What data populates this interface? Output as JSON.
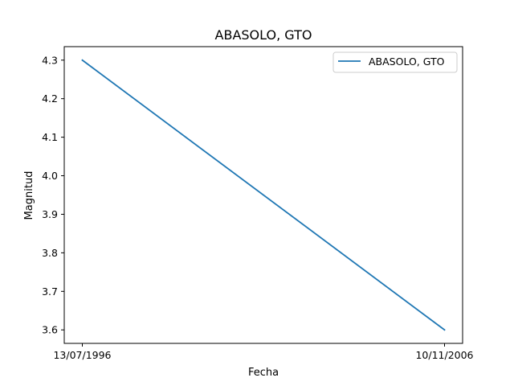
{
  "chart_data": {
    "type": "line",
    "title": "ABASOLO, GTO",
    "xlabel": "Fecha",
    "ylabel": "Magnitud",
    "x": [
      "13/07/1996",
      "10/11/2006"
    ],
    "x_ticks": [
      "13/07/1996",
      "10/11/2006"
    ],
    "y_ticks": [
      3.6,
      3.7,
      3.8,
      3.9,
      4.0,
      4.1,
      4.2,
      4.3
    ],
    "ylim": [
      3.565,
      4.335
    ],
    "grid": false,
    "legend_position": "top-right",
    "series": [
      {
        "name": "ABASOLO, GTO",
        "values": [
          4.3,
          3.6
        ],
        "color": "#1f77b4"
      }
    ]
  }
}
